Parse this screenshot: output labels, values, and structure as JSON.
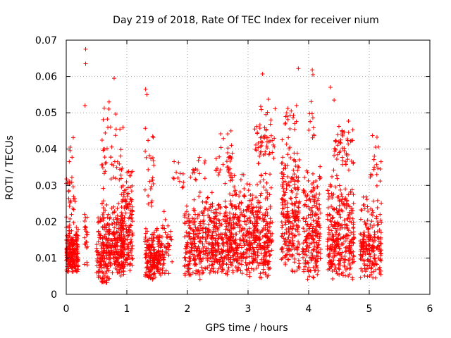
{
  "chart_data": {
    "type": "scatter",
    "title": "Day 219 of 2018, Rate Of TEC Index for receiver nium",
    "xlabel": "GPS time / hours",
    "ylabel": "ROTI / TECUs",
    "xlim": [
      0,
      6
    ],
    "ylim": [
      0,
      0.07
    ],
    "xticks": [
      0,
      1,
      2,
      3,
      4,
      5,
      6
    ],
    "yticks": [
      0,
      0.01,
      0.02,
      0.03,
      0.04,
      0.05,
      0.06,
      0.07
    ],
    "xtick_labels": [
      "0",
      "1",
      "2",
      "3",
      "4",
      "5",
      "6"
    ],
    "ytick_labels": [
      "0",
      "0.01",
      "0.02",
      "0.03",
      "0.04",
      "0.05",
      "0.06",
      "0.07"
    ],
    "grid": true,
    "marker": "+",
    "color": "#ff0000",
    "series": [
      {
        "name": "ROTI",
        "clusters": [
          {
            "x": [
              0.0,
              0.2
            ],
            "y": [
              0.006,
              0.02
            ],
            "n": 220
          },
          {
            "x": [
              0.0,
              0.15
            ],
            "y": [
              0.02,
              0.035
            ],
            "n": 25
          },
          {
            "x": [
              0.05,
              0.12
            ],
            "y": [
              0.035,
              0.046
            ],
            "n": 5
          },
          {
            "x": [
              0.3,
              0.35
            ],
            "y": [
              0.007,
              0.035
            ],
            "n": 25
          },
          {
            "x": [
              0.5,
              0.72
            ],
            "y": [
              0.003,
              0.028
            ],
            "n": 170
          },
          {
            "x": [
              0.55,
              0.75
            ],
            "y": [
              0.028,
              0.055
            ],
            "n": 25
          },
          {
            "x": [
              0.72,
              0.95
            ],
            "y": [
              0.005,
              0.027
            ],
            "n": 180
          },
          {
            "x": [
              0.9,
              1.1
            ],
            "y": [
              0.006,
              0.038
            ],
            "n": 170
          },
          {
            "x": [
              0.75,
              0.95
            ],
            "y": [
              0.028,
              0.054
            ],
            "n": 20
          },
          {
            "x": [
              1.3,
              1.6
            ],
            "y": [
              0.004,
              0.02
            ],
            "n": 220
          },
          {
            "x": [
              1.3,
              1.45
            ],
            "y": [
              0.02,
              0.05
            ],
            "n": 25
          },
          {
            "x": [
              1.6,
              1.75
            ],
            "y": [
              0.005,
              0.026
            ],
            "n": 35
          },
          {
            "x": [
              1.75,
              1.95
            ],
            "y": [
              0.028,
              0.038
            ],
            "n": 12
          },
          {
            "x": [
              1.95,
              2.3
            ],
            "y": [
              0.004,
              0.03
            ],
            "n": 200
          },
          {
            "x": [
              2.05,
              2.3
            ],
            "y": [
              0.03,
              0.04
            ],
            "n": 15
          },
          {
            "x": [
              2.3,
              2.7
            ],
            "y": [
              0.005,
              0.03
            ],
            "n": 260
          },
          {
            "x": [
              2.45,
              2.75
            ],
            "y": [
              0.03,
              0.047
            ],
            "n": 35
          },
          {
            "x": [
              2.7,
              3.0
            ],
            "y": [
              0.005,
              0.035
            ],
            "n": 210
          },
          {
            "x": [
              3.0,
              3.4
            ],
            "y": [
              0.004,
              0.035
            ],
            "n": 290
          },
          {
            "x": [
              3.1,
              3.45
            ],
            "y": [
              0.035,
              0.055
            ],
            "n": 55
          },
          {
            "x": [
              3.55,
              3.85
            ],
            "y": [
              0.006,
              0.045
            ],
            "n": 240
          },
          {
            "x": [
              3.6,
              3.8
            ],
            "y": [
              0.045,
              0.053
            ],
            "n": 15
          },
          {
            "x": [
              3.9,
              4.2
            ],
            "y": [
              0.004,
              0.038
            ],
            "n": 210
          },
          {
            "x": [
              4.0,
              4.1
            ],
            "y": [
              0.04,
              0.055
            ],
            "n": 10
          },
          {
            "x": [
              4.3,
              4.75
            ],
            "y": [
              0.004,
              0.035
            ],
            "n": 310
          },
          {
            "x": [
              4.4,
              4.75
            ],
            "y": [
              0.035,
              0.05
            ],
            "n": 50
          },
          {
            "x": [
              4.85,
              5.2
            ],
            "y": [
              0.004,
              0.028
            ],
            "n": 210
          },
          {
            "x": [
              5.0,
              5.2
            ],
            "y": [
              0.028,
              0.048
            ],
            "n": 18
          }
        ],
        "points": [
          {
            "x": 0.32,
            "y": 0.0675
          },
          {
            "x": 0.32,
            "y": 0.0635
          },
          {
            "x": 0.31,
            "y": 0.052
          },
          {
            "x": 0.79,
            "y": 0.0595
          },
          {
            "x": 1.31,
            "y": 0.0565
          },
          {
            "x": 1.33,
            "y": 0.055
          },
          {
            "x": 3.24,
            "y": 0.0607
          },
          {
            "x": 3.83,
            "y": 0.0622
          },
          {
            "x": 4.06,
            "y": 0.0618
          },
          {
            "x": 4.07,
            "y": 0.0605
          },
          {
            "x": 4.36,
            "y": 0.057
          },
          {
            "x": 0.6,
            "y": 0.0035
          },
          {
            "x": 0.67,
            "y": 0.0032
          },
          {
            "x": 3.8,
            "y": 0.052
          },
          {
            "x": 4.42,
            "y": 0.0535
          }
        ]
      }
    ]
  }
}
